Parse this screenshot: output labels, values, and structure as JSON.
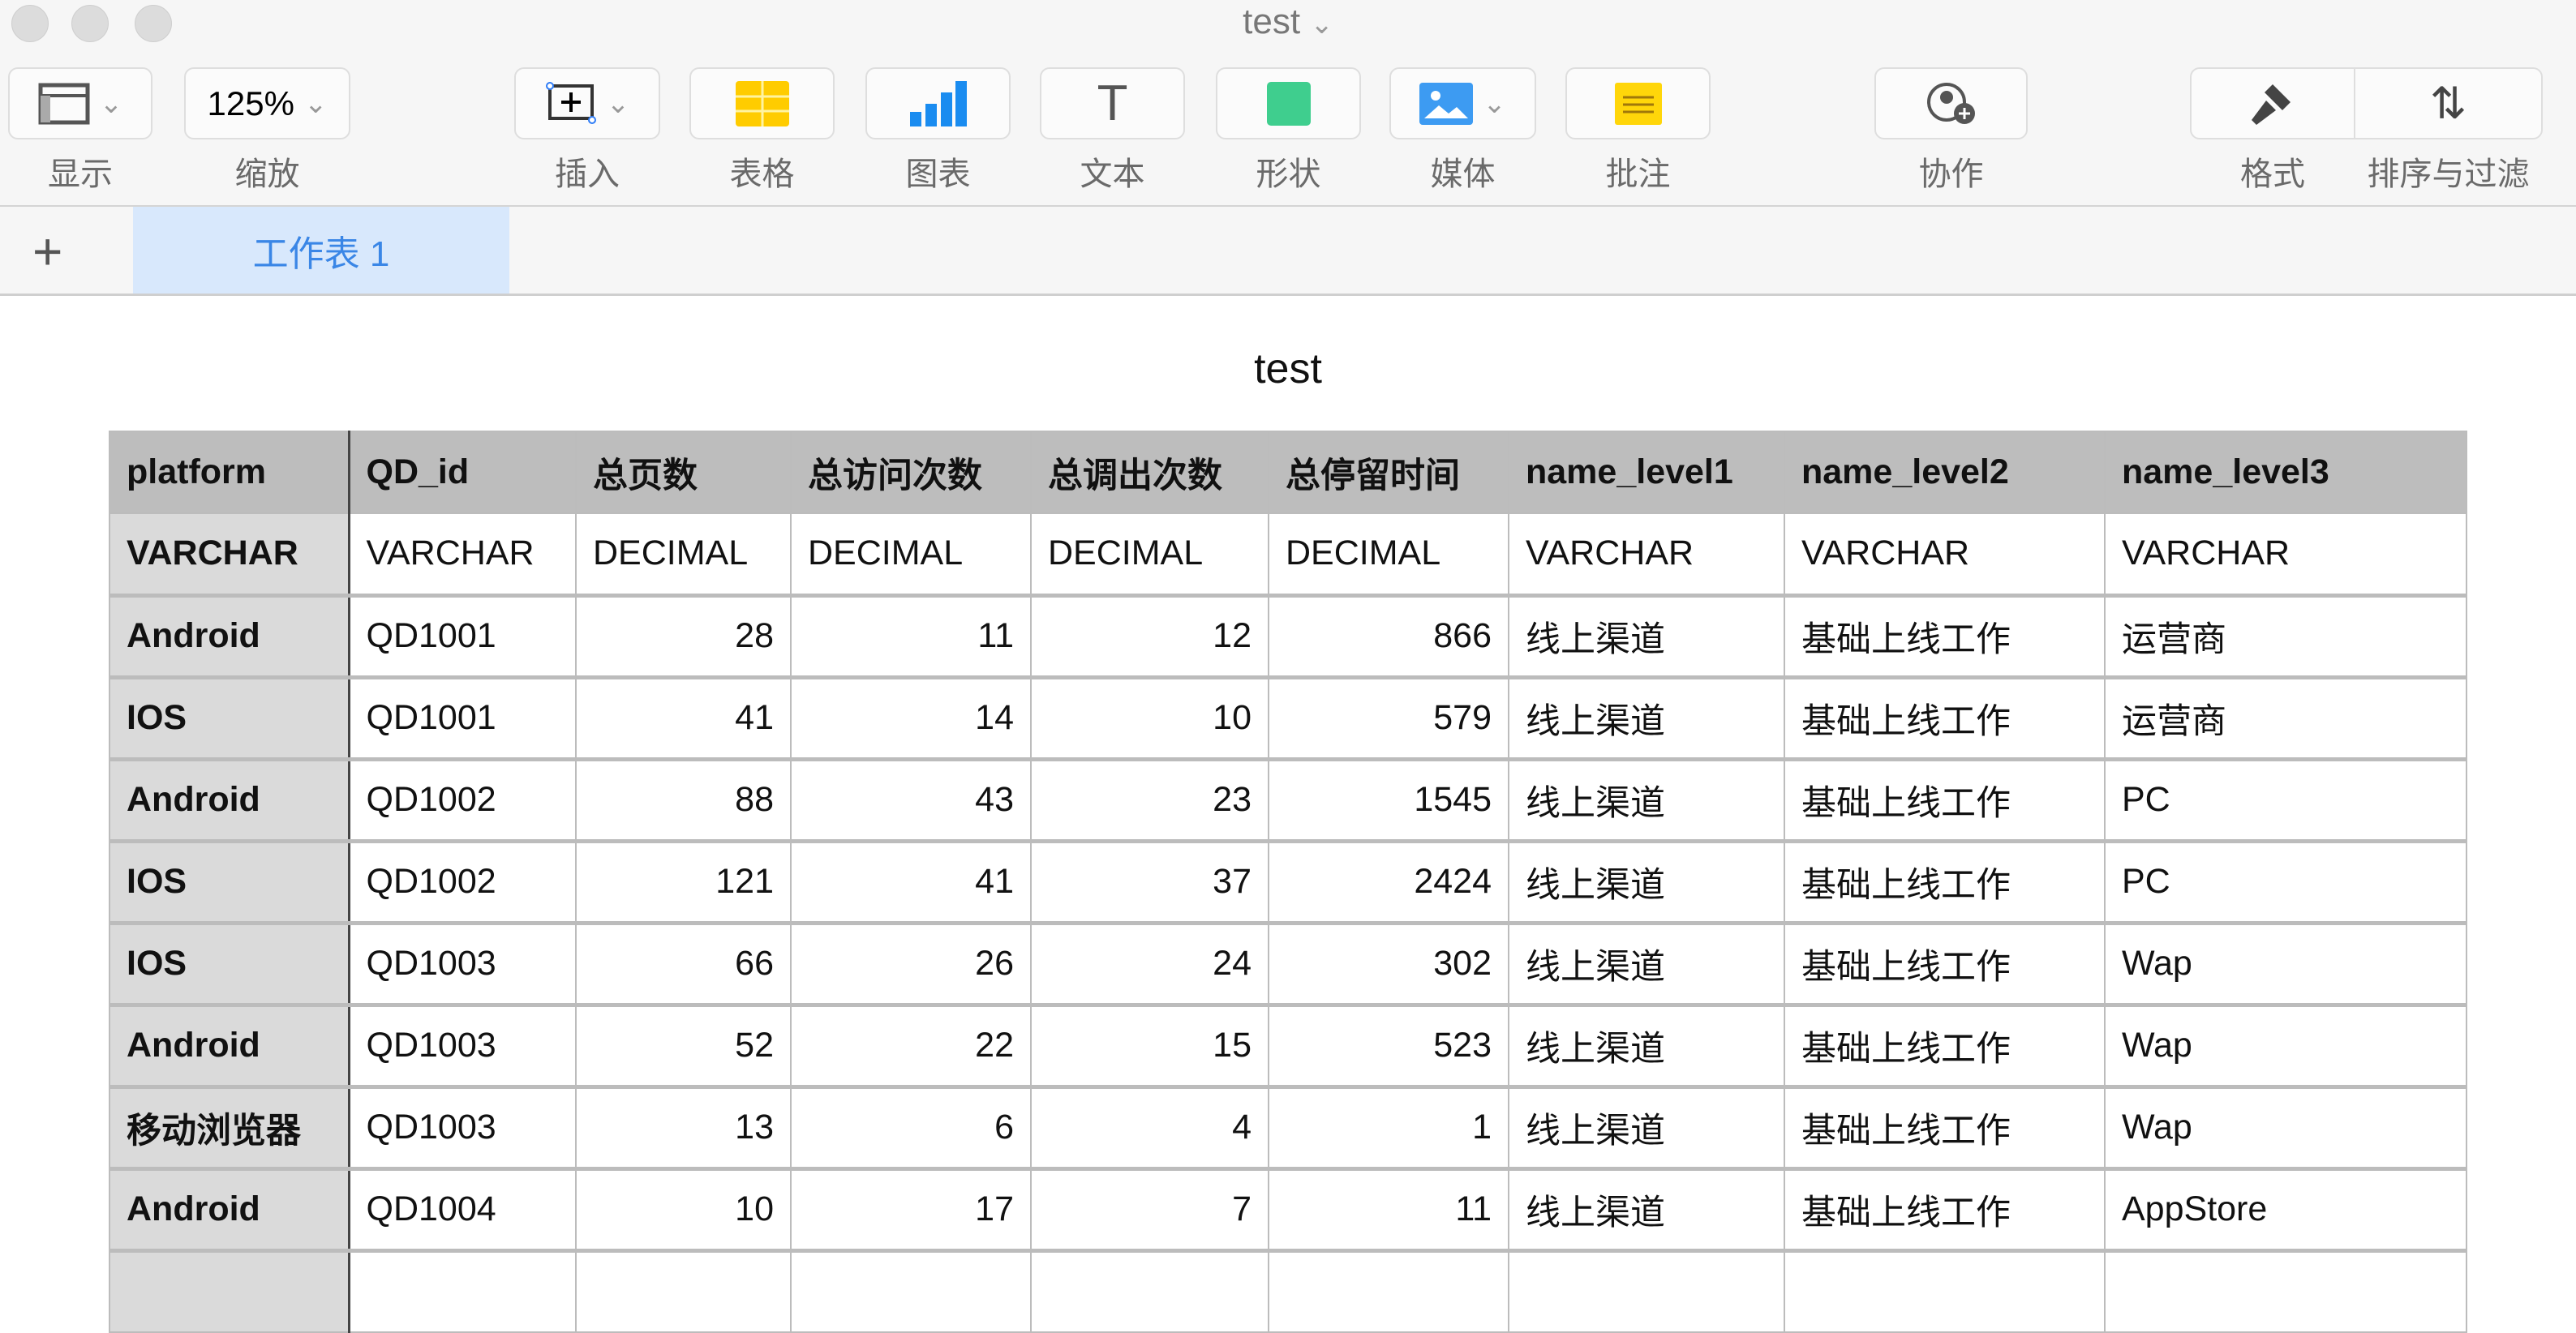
{
  "window": {
    "title": "test"
  },
  "toolbar": {
    "view": "显示",
    "zoom": "缩放",
    "zoom_value": "125%",
    "insert": "插入",
    "table": "表格",
    "chart": "图表",
    "text": "文本",
    "shape": "形状",
    "media": "媒体",
    "comment": "批注",
    "collaborate": "协作",
    "format": "格式",
    "sort_filter": "排序与过滤"
  },
  "sheets": {
    "tabs": [
      {
        "label": "工作表 1",
        "active": true
      }
    ]
  },
  "table": {
    "title": "test",
    "headers": [
      "platform",
      "QD_id",
      "总页数",
      "总访问次数",
      "总调出次数",
      "总停留时间",
      "name_level1",
      "name_level2",
      "name_level3"
    ],
    "types": [
      "VARCHAR",
      "VARCHAR",
      "DECIMAL",
      "DECIMAL",
      "DECIMAL",
      "DECIMAL",
      "VARCHAR",
      "VARCHAR",
      "VARCHAR"
    ],
    "rows": [
      [
        "Android",
        "QD1001",
        "28",
        "11",
        "12",
        "866",
        "线上渠道",
        "基础上线工作",
        "运营商"
      ],
      [
        "IOS",
        "QD1001",
        "41",
        "14",
        "10",
        "579",
        "线上渠道",
        "基础上线工作",
        "运营商"
      ],
      [
        "Android",
        "QD1002",
        "88",
        "43",
        "23",
        "1545",
        "线上渠道",
        "基础上线工作",
        "PC"
      ],
      [
        "IOS",
        "QD1002",
        "121",
        "41",
        "37",
        "2424",
        "线上渠道",
        "基础上线工作",
        "PC"
      ],
      [
        "IOS",
        "QD1003",
        "66",
        "26",
        "24",
        "302",
        "线上渠道",
        "基础上线工作",
        "Wap"
      ],
      [
        "Android",
        "QD1003",
        "52",
        "22",
        "15",
        "523",
        "线上渠道",
        "基础上线工作",
        "Wap"
      ],
      [
        "移动浏览器",
        "QD1003",
        "13",
        "6",
        "4",
        "1",
        "线上渠道",
        "基础上线工作",
        "Wap"
      ],
      [
        "Android",
        "QD1004",
        "10",
        "17",
        "7",
        "11",
        "线上渠道",
        "基础上线工作",
        "AppStore"
      ]
    ]
  }
}
